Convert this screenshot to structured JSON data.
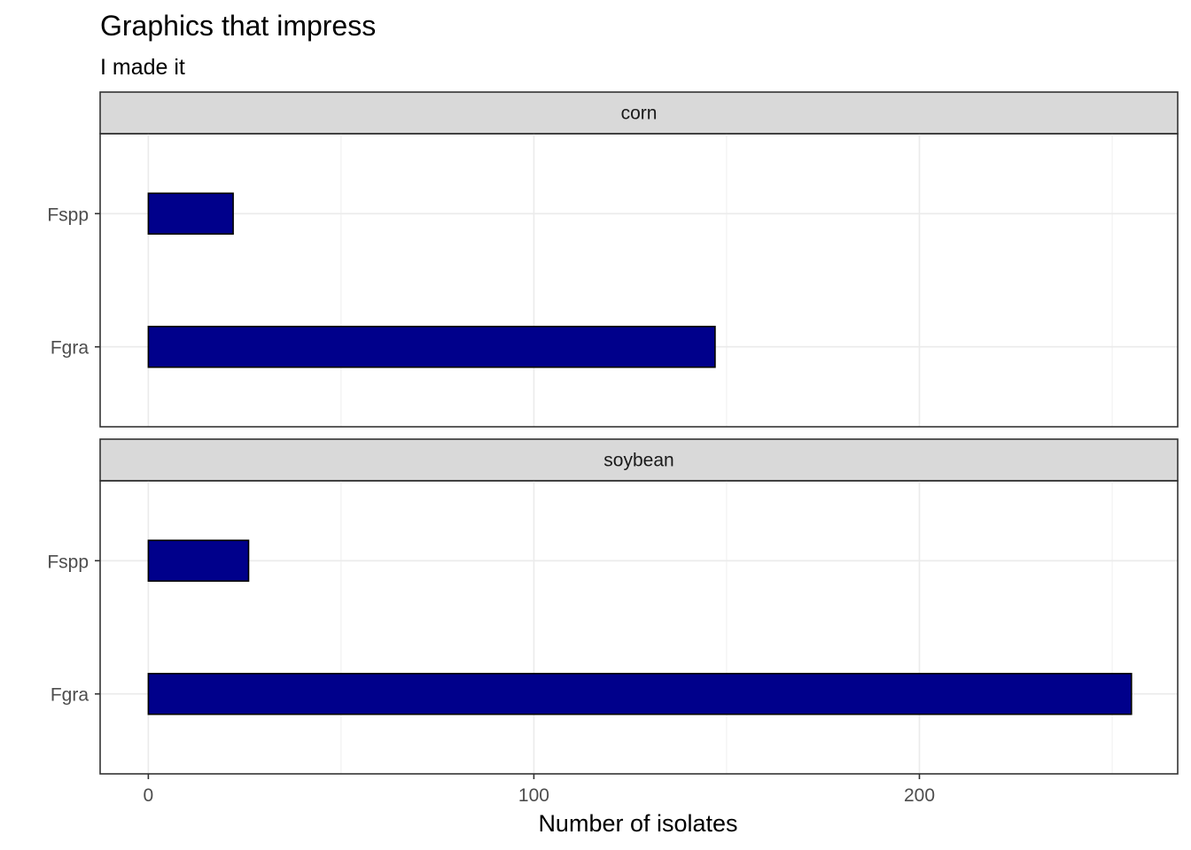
{
  "chart_data": {
    "type": "bar",
    "orientation": "horizontal",
    "title": "Graphics that impress",
    "subtitle": "I made it",
    "xlabel": "Number of isolates",
    "ylabel": "",
    "xlim": [
      -12.5,
      267
    ],
    "x_ticks": [
      0,
      100,
      200
    ],
    "x_tick_labels": [
      "0",
      "100",
      "200"
    ],
    "categories": [
      "Fspp",
      "Fgra"
    ],
    "bar_color": "#00008B",
    "grid": true,
    "facets": [
      {
        "label": "corn",
        "values": {
          "Fspp": 22,
          "Fgra": 147
        }
      },
      {
        "label": "soybean",
        "values": {
          "Fspp": 26,
          "Fgra": 255
        }
      }
    ]
  }
}
